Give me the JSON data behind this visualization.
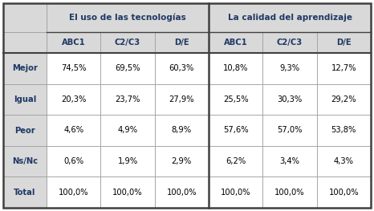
{
  "col_headers_top": [
    "El uso de las tecnologías",
    "La calidad del aprendizaje"
  ],
  "col_headers_sub": [
    "ABC1",
    "C2/C3",
    "D/E",
    "ABC1",
    "C2/C3",
    "D/E"
  ],
  "row_headers": [
    "Mejor",
    "Igual",
    "Peor",
    "Ns/Nc",
    "Total"
  ],
  "data": [
    [
      "74,5%",
      "69,5%",
      "60,3%",
      "10,8%",
      "9,3%",
      "12,7%"
    ],
    [
      "20,3%",
      "23,7%",
      "27,9%",
      "25,5%",
      "30,3%",
      "29,2%"
    ],
    [
      "4,6%",
      "4,9%",
      "8,9%",
      "57,6%",
      "57,0%",
      "53,8%"
    ],
    [
      "0,6%",
      "1,9%",
      "2,9%",
      "6,2%",
      "3,4%",
      "4,3%"
    ],
    [
      "100,0%",
      "100,0%",
      "100,0%",
      "100,0%",
      "100,0%",
      "100,0%"
    ]
  ],
  "header_bg": "#d9d9d9",
  "data_bg": "#ffffff",
  "row_header_bg": "#d9d9d9",
  "header_text_color": "#1f3864",
  "sub_header_text_color": "#1f3864",
  "row_header_text_color": "#1f3864",
  "data_text_color": "#000000",
  "border_color": "#a0a0a0",
  "outer_border_color": "#404040",
  "figwidth": 4.66,
  "figheight": 2.63,
  "dpi": 100
}
